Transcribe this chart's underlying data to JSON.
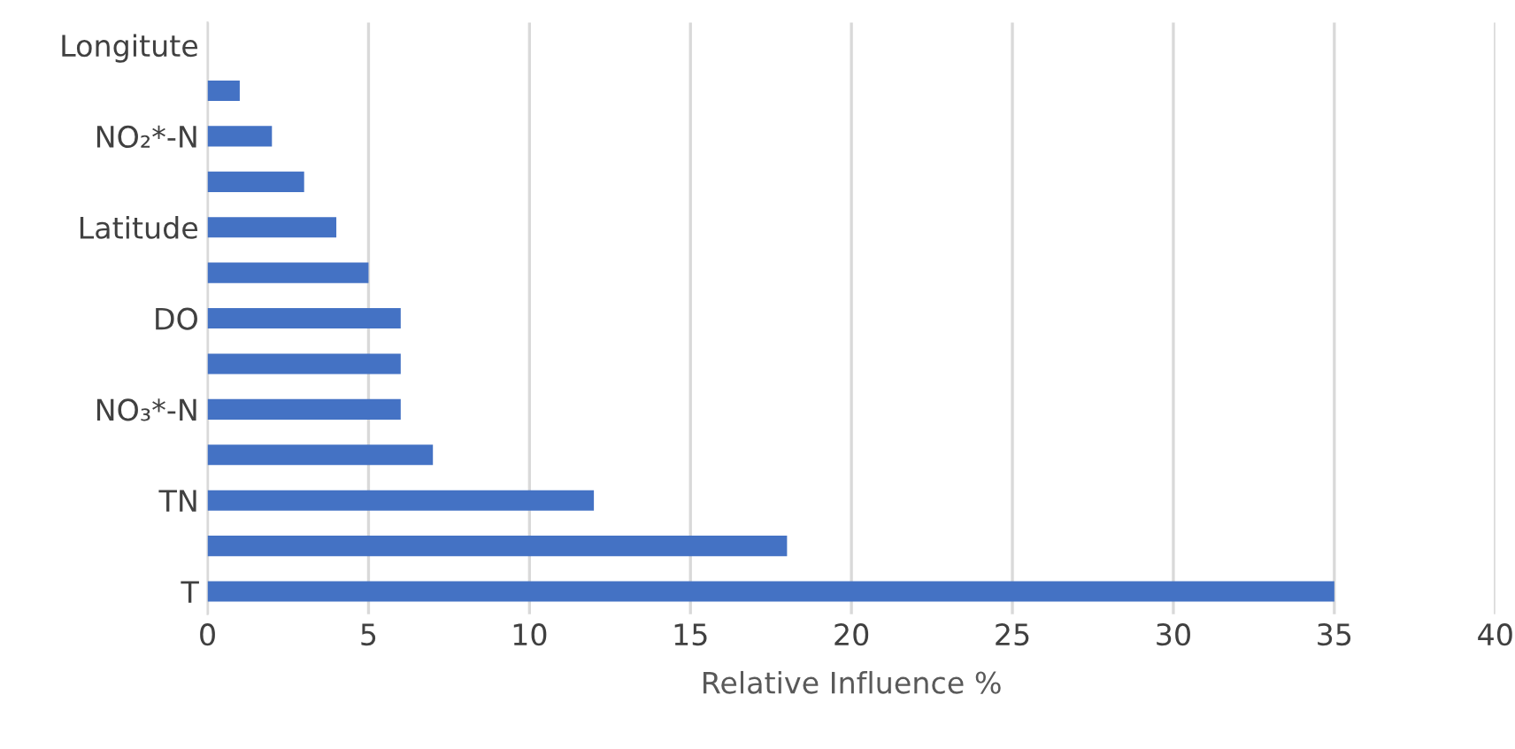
{
  "chart_data": {
    "type": "bar",
    "orientation": "horizontal",
    "xlabel": "Relative Influence %",
    "categories": [
      "Longitute",
      null,
      "NO₂*-N",
      null,
      "Latitude",
      null,
      "DO",
      null,
      "NO₃*-N",
      null,
      "TN",
      null,
      "T"
    ],
    "values": [
      0,
      1,
      2,
      3,
      4,
      5,
      6,
      6,
      6,
      7,
      12,
      18,
      35
    ],
    "color": "#4472c4",
    "xlim": [
      0,
      40
    ],
    "xticks": [
      0,
      5,
      10,
      15,
      20,
      25,
      30,
      35,
      40
    ],
    "grid": "x"
  }
}
